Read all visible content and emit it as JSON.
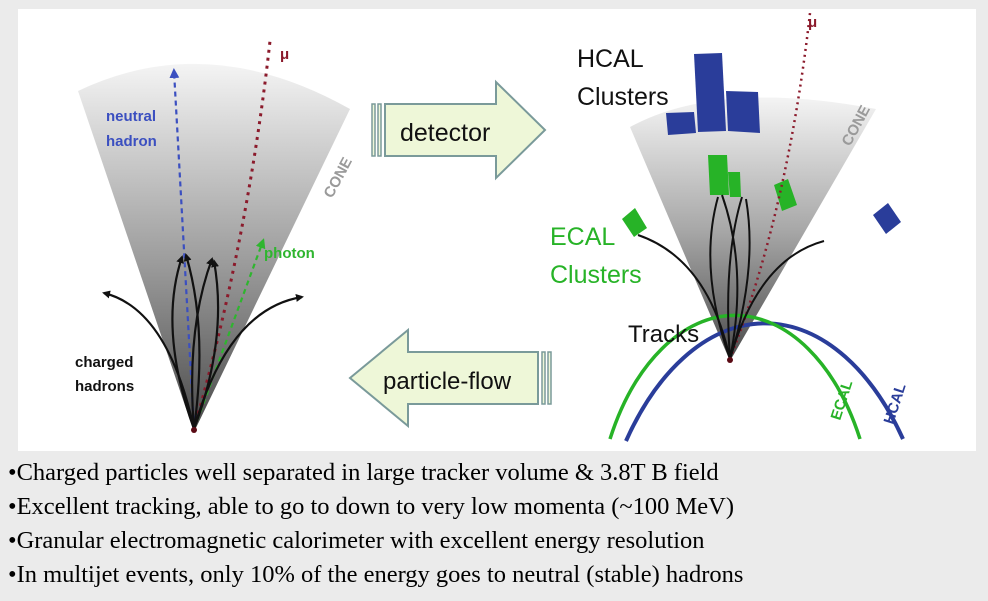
{
  "left_panel": {
    "cone_label": "CONE",
    "neutral_label": [
      "neutral",
      "hadron"
    ],
    "photon_label": "photon",
    "mu_label": "μ",
    "charged_label": [
      "charged",
      "hadrons"
    ]
  },
  "right_panel": {
    "hcal_clusters_label": [
      "HCAL",
      "Clusters"
    ],
    "ecal_clusters_label": [
      "ECAL",
      "Clusters"
    ],
    "tracks_label": "Tracks",
    "cone_label": "CONE",
    "mu_label": "μ",
    "ecal_ring_label": "ECAL",
    "hcal_ring_label": "HCAL"
  },
  "arrows": {
    "detector_label": "detector",
    "particle_flow_label": "particle-flow"
  },
  "colors": {
    "neutral": "#3b4fc0",
    "photon": "#2fb52f",
    "muon": "#8b1a2b",
    "hcal": "#2a3d9a",
    "ecal": "#27b327",
    "arrow_fill": "#eef7d8",
    "arrow_stroke": "#7a9a9a"
  },
  "bullets": [
    "•Charged particles well separated in large tracker volume & 3.8T B field",
    "•Excellent tracking, able to go to down to very low momenta (~100 MeV)",
    "•Granular electromagnetic calorimeter with excellent energy resolution",
    "•In multijet events, only 10% of the energy goes to neutral (stable) hadrons"
  ]
}
